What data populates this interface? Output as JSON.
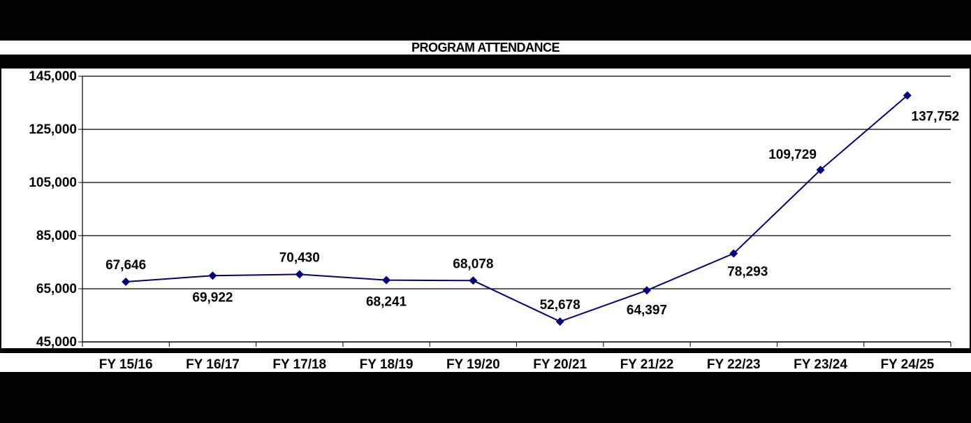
{
  "chart_data": {
    "type": "line",
    "title": "PROGRAM ATTENDANCE",
    "xlabel": "",
    "ylabel": "",
    "categories": [
      "FY 15/16",
      "FY 16/17",
      "FY 17/18",
      "FY 18/19",
      "FY 19/20",
      "FY 20/21",
      "FY 21/22",
      "FY 22/23",
      "FY 23/24",
      "FY 24/25"
    ],
    "series": [
      {
        "values": [
          67646,
          69922,
          70430,
          68241,
          68078,
          52678,
          64397,
          78293,
          109729,
          137752
        ]
      }
    ],
    "data_labels": [
      "67,646",
      "69,922",
      "70,430",
      "68,241",
      "68,078",
      "52,678",
      "64,397",
      "78,293",
      "109,729",
      "137,752"
    ],
    "ylim": [
      45000,
      145000
    ],
    "yticks": [
      45000,
      65000,
      85000,
      105000,
      125000,
      145000
    ],
    "ytick_labels": [
      "45,000",
      "65,000",
      "85,000",
      "105,000",
      "125,000",
      "145,000"
    ],
    "grid": true,
    "line_color": "#000080",
    "marker": "diamond"
  }
}
